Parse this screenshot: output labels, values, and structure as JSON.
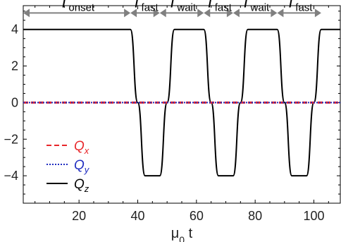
{
  "chart_data": {
    "type": "line",
    "title": "",
    "xlabel": {
      "main": "μ",
      "sub": "0",
      "tail": " t"
    },
    "ylabel": "",
    "xlim": [
      1,
      109
    ],
    "ylim": [
      -5.5,
      5.3
    ],
    "xticks": [
      20,
      40,
      60,
      80,
      100
    ],
    "xtick_labels": [
      "20",
      "40",
      "60",
      "80",
      "100"
    ],
    "yticks": [
      4,
      2,
      0,
      -2,
      -4
    ],
    "ytick_labels": [
      "4",
      "2",
      "0",
      "−2",
      "−4"
    ],
    "series": [
      {
        "name": "Q",
        "sub": "x",
        "color": "#e8262a",
        "style": "dashed",
        "values_description": "≈0 throughout"
      },
      {
        "name": "Q",
        "sub": "y",
        "color": "#1f2cc0",
        "style": "dotted",
        "values_description": "≈0 throughout"
      },
      {
        "name": "Q",
        "sub": "z",
        "color": "#000000",
        "style": "solid",
        "x": [
          1,
          37.5,
          40,
          42.5,
          47.5,
          50,
          52.5,
          62.5,
          65,
          67.5,
          72.5,
          75,
          77.5,
          87.5,
          90,
          92.5,
          97.5,
          100,
          102.5,
          109
        ],
        "y": [
          4,
          4,
          0,
          -4,
          -4,
          0,
          4,
          4,
          0,
          -4,
          -4,
          0,
          4,
          4,
          0,
          -4,
          -4,
          0,
          4,
          4
        ]
      }
    ],
    "annotations": [
      {
        "main": "T",
        "sub": "onset",
        "x0": 1,
        "x1": 37.5
      },
      {
        "main": "T",
        "sub": "fast",
        "x0": 37.5,
        "x1": 47.5
      },
      {
        "main": "T",
        "sub": "wait",
        "x0": 47.5,
        "x1": 62.5
      },
      {
        "main": "T",
        "sub": "fast",
        "x0": 62.5,
        "x1": 72.5
      },
      {
        "main": "T",
        "sub": "wait",
        "x0": 72.5,
        "x1": 87.5
      },
      {
        "main": "T",
        "sub": "fast",
        "x0": 87.5,
        "x1": 102.5
      }
    ],
    "annotation_y": 4.9,
    "legend_position": "lower-left",
    "grid": false,
    "colors": {
      "arrow": "#808080",
      "axis": "#000000"
    }
  }
}
